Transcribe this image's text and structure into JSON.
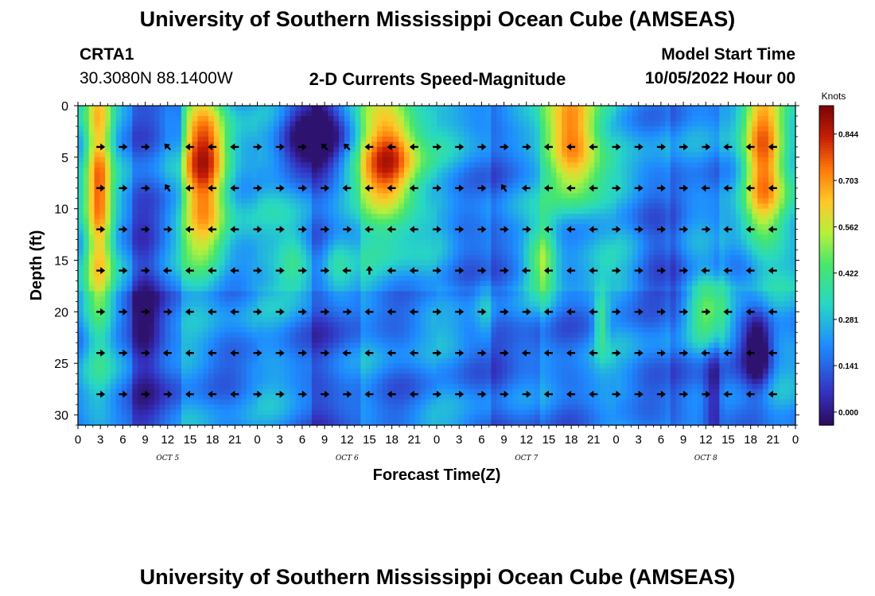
{
  "page_title": "University of Southern Mississippi Ocean Cube (AMSEAS)",
  "footer_title": "University of Southern Mississippi Ocean Cube (AMSEAS)",
  "station": {
    "id": "CRTA1",
    "coords": "30.3080N  88.1400W"
  },
  "model": {
    "label": "Model Start Time",
    "value": "10/05/2022 Hour 00"
  },
  "colors": {
    "arrow": "#000000",
    "frame": "#000000"
  },
  "chart_data": {
    "type": "heatmap",
    "title": "2-D Currents Speed-Magnitude",
    "xlabel": "Forecast Time(Z)",
    "ylabel": "Depth (ft)",
    "x_range_hours": [
      0,
      96
    ],
    "ylim": [
      0,
      31
    ],
    "x_tick_labels": [
      "0",
      "3",
      "6",
      "9",
      "12",
      "15",
      "18",
      "21",
      "0",
      "3",
      "6",
      "9",
      "12",
      "15",
      "18",
      "21",
      "0",
      "3",
      "6",
      "9",
      "12",
      "15",
      "18",
      "21",
      "0",
      "3",
      "6",
      "9",
      "12",
      "15",
      "18",
      "21",
      "0"
    ],
    "y_ticks": [
      0,
      5,
      10,
      15,
      20,
      25,
      30
    ],
    "day_labels": [
      {
        "text": "OCT  5",
        "hour": 12
      },
      {
        "text": "OCT  6",
        "hour": 36
      },
      {
        "text": "OCT  7",
        "hour": 60
      },
      {
        "text": "OCT  8",
        "hour": 84
      }
    ],
    "colorbar": {
      "unit": "Knots",
      "ticks": [
        "0.844",
        "0.703",
        "0.562",
        "0.422",
        "0.281",
        "0.141",
        "0.000"
      ],
      "tick_values": [
        0.844,
        0.703,
        0.562,
        0.422,
        0.281,
        0.141,
        0.0
      ],
      "range": [
        -0.04,
        0.93
      ]
    },
    "arrow_depths_ft": [
      4,
      8,
      12,
      16,
      20,
      24,
      28
    ],
    "arrow_hours": [
      0,
      3,
      6,
      9,
      12,
      15,
      18,
      21,
      24,
      27,
      30,
      33,
      36,
      39,
      42,
      45,
      48,
      51,
      54,
      57,
      60,
      63,
      66,
      69,
      72,
      75,
      78,
      81,
      84,
      87,
      90,
      93,
      96
    ],
    "high_speed_regions": [
      {
        "label": "day1-early",
        "h": [
          1,
          4.5
        ],
        "d": [
          0,
          24
        ],
        "speed": 0.62
      },
      {
        "label": "day1-late",
        "h": [
          13.5,
          20.5
        ],
        "d": [
          0,
          18
        ],
        "speed": 0.8
      },
      {
        "label": "day2-late",
        "h": [
          37,
          46
        ],
        "d": [
          0,
          14
        ],
        "speed": 0.82
      },
      {
        "label": "day3-late",
        "h": [
          61.5,
          70.5
        ],
        "d": [
          0,
          10
        ],
        "speed": 0.78
      },
      {
        "label": "day4-late",
        "h": [
          88,
          95
        ],
        "d": [
          0,
          14
        ],
        "speed": 0.72
      }
    ],
    "low_speed_regions": [
      {
        "label": "day2-morning",
        "h": [
          25,
          35
        ],
        "d": [
          0,
          7
        ],
        "speed": 0.03
      },
      {
        "label": "day4-deep",
        "h": [
          88,
          93
        ],
        "d": [
          19,
          29
        ],
        "speed": 0.05
      }
    ]
  }
}
